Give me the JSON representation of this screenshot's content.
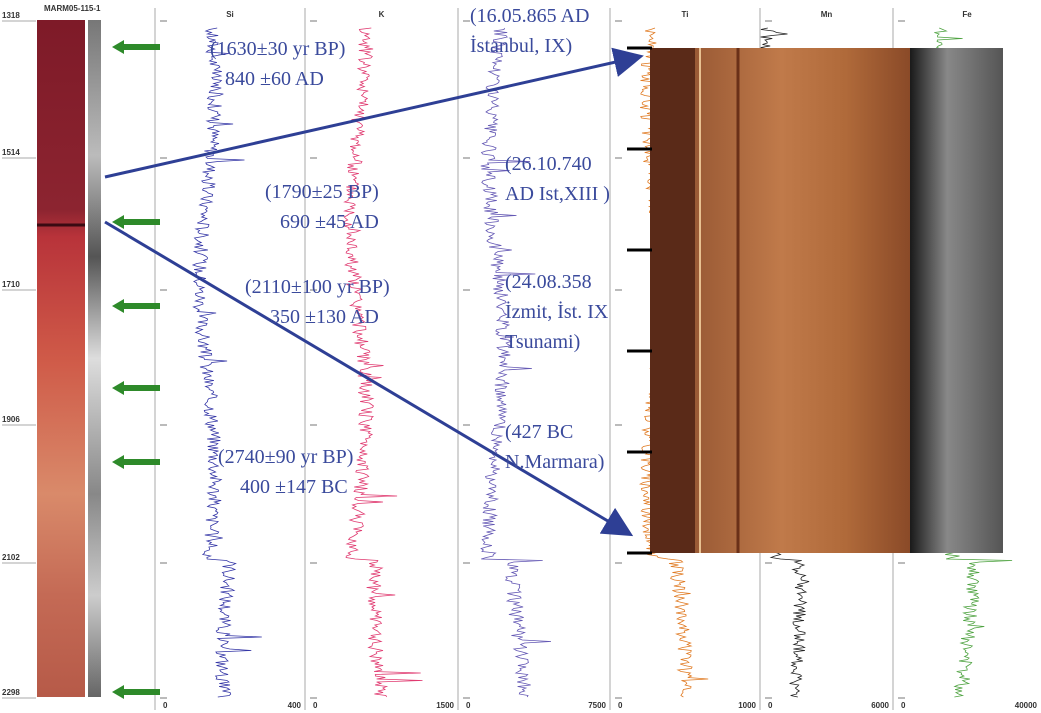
{
  "core": {
    "label": "MARM05-115-1",
    "depths": [
      "1318",
      "1514",
      "1710",
      "1906",
      "2102",
      "2298"
    ]
  },
  "panels": [
    {
      "name": "Si",
      "min": "0",
      "max": "400"
    },
    {
      "name": "K",
      "min": "0",
      "max": "1500"
    },
    {
      "min": "0",
      "max": "7500"
    },
    {
      "name": "Ti",
      "min": "0",
      "max": "1000"
    },
    {
      "name": "Mn",
      "min": "0",
      "max": "6000"
    },
    {
      "name": "Fe",
      "min": "0",
      "max": "40000"
    }
  ],
  "dates": [
    [
      "(1630±30 yr BP)",
      "840 ±60 AD"
    ],
    [
      "(1790±25 BP)",
      "690 ±45 AD"
    ],
    [
      "(2110±100 yr BP)",
      "350 ±130 AD"
    ],
    [
      "(2740±90 yr BP)",
      "400 ±147 BC"
    ]
  ],
  "events": [
    [
      "(16.05.865 AD",
      "İstanbul, IX)"
    ],
    [
      "(26.10.740",
      "AD Ist,XIII )"
    ],
    [
      "(24.08.358",
      "İzmit, İst. IX",
      "Tsunami)"
    ],
    [
      "(427 BC",
      "N.Marmara)"
    ]
  ]
}
